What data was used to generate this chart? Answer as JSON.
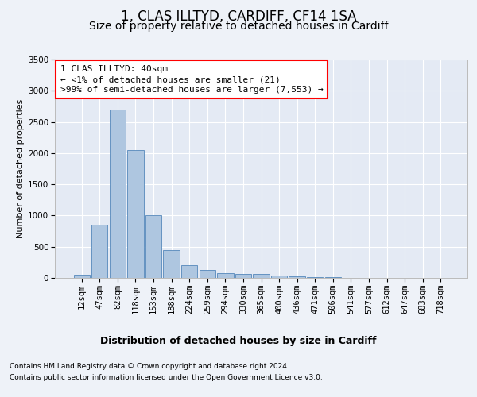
{
  "title": "1, CLAS ILLTYD, CARDIFF, CF14 1SA",
  "subtitle": "Size of property relative to detached houses in Cardiff",
  "xlabel": "Distribution of detached houses by size in Cardiff",
  "ylabel": "Number of detached properties",
  "categories": [
    "12sqm",
    "47sqm",
    "82sqm",
    "118sqm",
    "153sqm",
    "188sqm",
    "224sqm",
    "259sqm",
    "294sqm",
    "330sqm",
    "365sqm",
    "400sqm",
    "436sqm",
    "471sqm",
    "506sqm",
    "541sqm",
    "577sqm",
    "612sqm",
    "647sqm",
    "683sqm",
    "718sqm"
  ],
  "values": [
    50,
    850,
    2700,
    2050,
    1000,
    450,
    200,
    130,
    80,
    70,
    60,
    40,
    30,
    15,
    10,
    5,
    3,
    2,
    1,
    1,
    0
  ],
  "bar_color": "#aec6e0",
  "bar_edge_color": "#5588bb",
  "ylim": [
    0,
    3500
  ],
  "yticks": [
    0,
    500,
    1000,
    1500,
    2000,
    2500,
    3000,
    3500
  ],
  "annotation_line1": "1 CLAS ILLTYD: 40sqm",
  "annotation_line2": "← <1% of detached houses are smaller (21)",
  "annotation_line3": ">99% of semi-detached houses are larger (7,553) →",
  "footer1": "Contains HM Land Registry data © Crown copyright and database right 2024.",
  "footer2": "Contains public sector information licensed under the Open Government Licence v3.0.",
  "bg_color": "#eef2f8",
  "plot_bg_color": "#e4eaf4",
  "grid_color": "#ffffff",
  "title_fontsize": 12,
  "subtitle_fontsize": 10,
  "ylabel_fontsize": 8,
  "tick_fontsize": 7.5,
  "annotation_fontsize": 8,
  "footer_fontsize": 6.5
}
